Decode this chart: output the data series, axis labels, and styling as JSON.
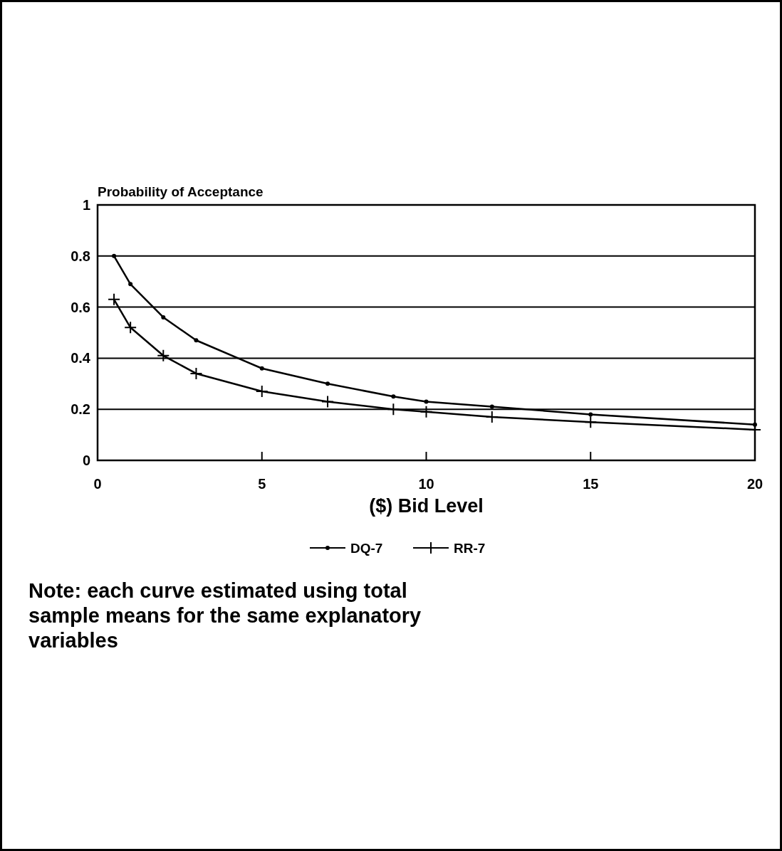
{
  "chart_data": {
    "type": "line",
    "ylabel": "Probability of Acceptance",
    "xlabel": "($) Bid Level",
    "x": [
      0.5,
      1,
      2,
      3,
      5,
      7,
      9,
      10,
      12,
      15,
      20
    ],
    "series": [
      {
        "name": "DQ-7",
        "color": "#000000",
        "marker": "circle",
        "values": [
          0.8,
          0.69,
          0.56,
          0.47,
          0.36,
          0.3,
          0.25,
          0.23,
          0.21,
          0.18,
          0.14
        ]
      },
      {
        "name": "RR-7",
        "color": "#000000",
        "marker": "cross",
        "values": [
          0.63,
          0.52,
          0.41,
          0.34,
          0.27,
          0.23,
          0.2,
          0.19,
          0.17,
          0.15,
          0.12
        ]
      }
    ],
    "xlim": [
      0,
      20
    ],
    "xticks": [
      0,
      5,
      10,
      15,
      20
    ],
    "ylim": [
      0,
      1
    ],
    "yticks": [
      0,
      0.2,
      0.4,
      0.6,
      0.8,
      1
    ],
    "grid": "y",
    "legend": "bottom",
    "line_style": "solid",
    "annotations": [
      "Note: each curve estimated using total sample means for the same explanatory variables"
    ]
  }
}
